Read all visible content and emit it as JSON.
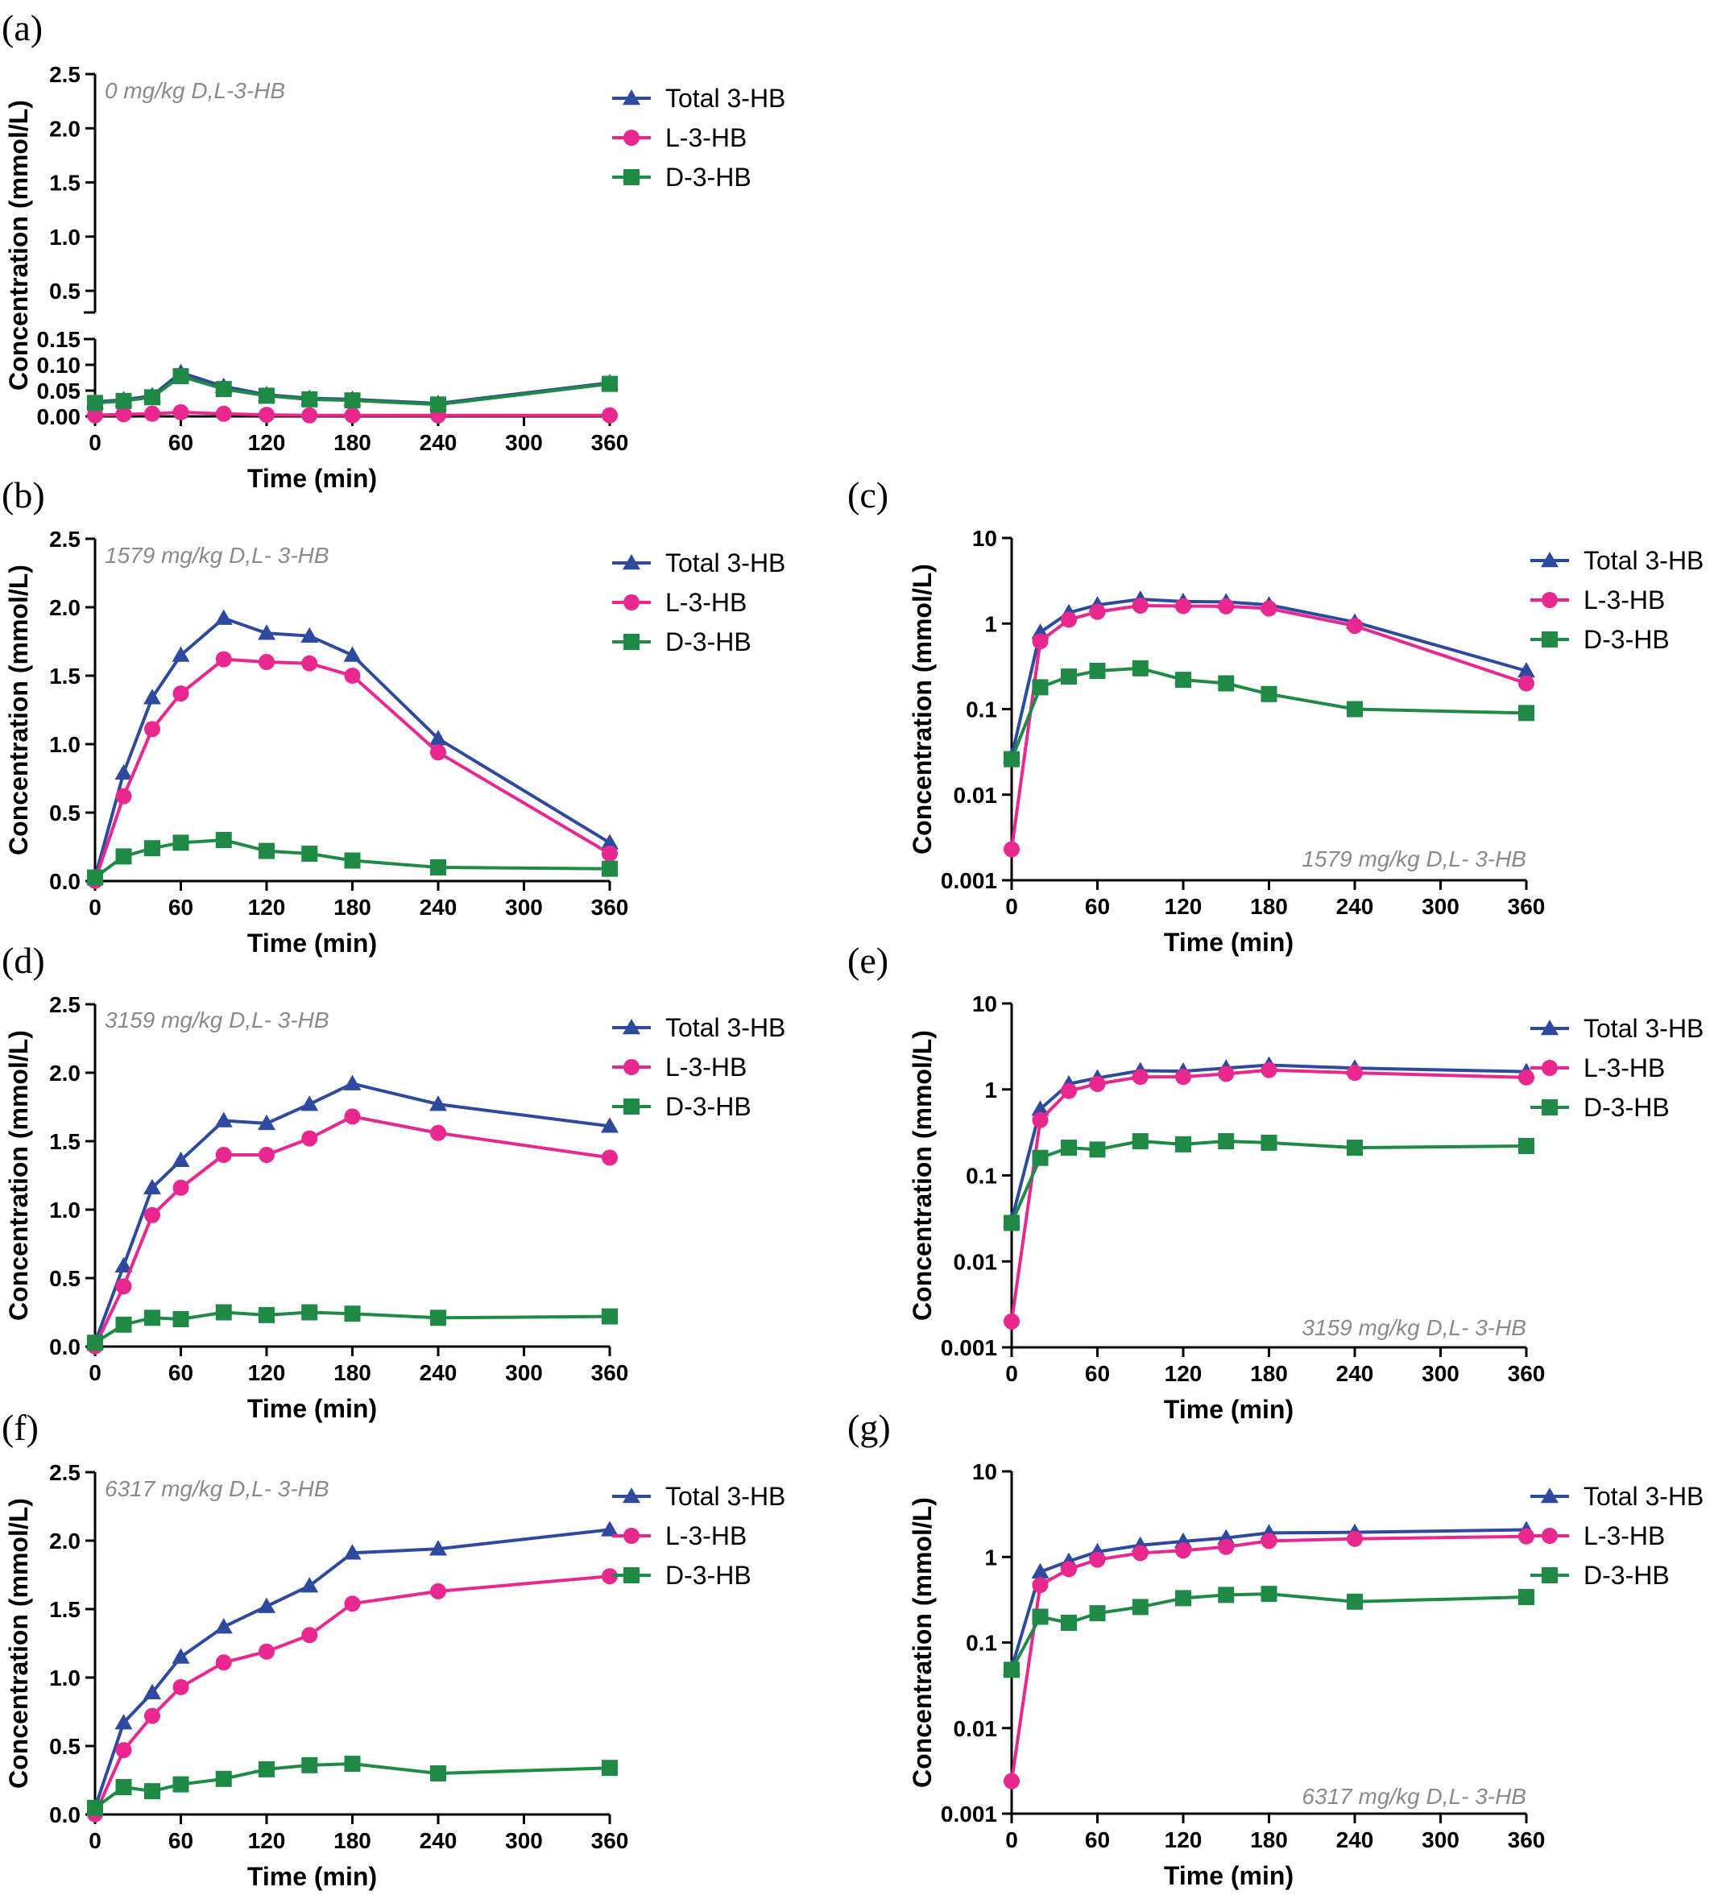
{
  "chart_data": [
    {
      "id": "a",
      "panel_label": "(a)",
      "type": "line",
      "yscale": "broken-linear",
      "annotation": "0 mg/kg D,L-3-HB",
      "xlabel": "Time (min)",
      "ylabel": "Concentration (mmol/L)",
      "xlim": [
        0,
        360
      ],
      "xticks": [
        0,
        60,
        120,
        180,
        240,
        300,
        360
      ],
      "xtick_labels": [
        "0",
        "60",
        "120",
        "180",
        "240",
        "300",
        "360"
      ],
      "lower_ylim": [
        0,
        0.15
      ],
      "lower_yticks": [
        0,
        0.05,
        0.1,
        0.15
      ],
      "lower_ytick_labels": [
        "0.00",
        "0.05",
        "0.10",
        "0.15"
      ],
      "upper_ylim": [
        0.3,
        2.5
      ],
      "upper_yticks": [
        0.5,
        1.0,
        1.5,
        2.0,
        2.5
      ],
      "upper_ytick_labels": [
        "0.5",
        "1.0",
        "1.5",
        "2.0",
        "2.5"
      ],
      "legend_position": "top-right",
      "x": [
        0,
        20,
        40,
        60,
        90,
        120,
        150,
        180,
        240,
        360
      ],
      "series": [
        {
          "name": "Total 3-HB",
          "values": [
            0.028,
            0.032,
            0.04,
            0.085,
            0.058,
            0.042,
            0.035,
            0.033,
            0.025,
            0.065
          ]
        },
        {
          "name": "L-3-HB",
          "values": [
            0.002,
            0.004,
            0.005,
            0.008,
            0.005,
            0.003,
            0.002,
            0.002,
            0.002,
            0.002
          ]
        },
        {
          "name": "D-3-HB",
          "values": [
            0.026,
            0.03,
            0.037,
            0.078,
            0.053,
            0.04,
            0.033,
            0.031,
            0.023,
            0.063
          ]
        }
      ]
    },
    {
      "id": "b",
      "panel_label": "(b)",
      "type": "line",
      "yscale": "linear",
      "annotation": "1579 mg/kg D,L- 3-HB",
      "xlabel": "Time (min)",
      "ylabel": "Concentration (mmol/L)",
      "xlim": [
        0,
        360
      ],
      "xticks": [
        0,
        60,
        120,
        180,
        240,
        300,
        360
      ],
      "xtick_labels": [
        "0",
        "60",
        "120",
        "180",
        "240",
        "300",
        "360"
      ],
      "ylim": [
        0,
        2.5
      ],
      "yticks": [
        0,
        0.5,
        1.0,
        1.5,
        2.0,
        2.5
      ],
      "ytick_labels": [
        "0.0",
        "0.5",
        "1.0",
        "1.5",
        "2.0",
        "2.5"
      ],
      "legend_position": "top-right",
      "x": [
        0,
        20,
        40,
        60,
        90,
        120,
        150,
        180,
        240,
        360
      ],
      "series": [
        {
          "name": "Total 3-HB",
          "values": [
            0.028,
            0.79,
            1.34,
            1.65,
            1.92,
            1.81,
            1.79,
            1.65,
            1.04,
            0.28
          ]
        },
        {
          "name": "L-3-HB",
          "values": [
            0.002,
            0.62,
            1.11,
            1.37,
            1.62,
            1.6,
            1.59,
            1.5,
            0.94,
            0.2
          ]
        },
        {
          "name": "D-3-HB",
          "values": [
            0.026,
            0.18,
            0.24,
            0.28,
            0.3,
            0.22,
            0.2,
            0.15,
            0.1,
            0.09
          ]
        }
      ]
    },
    {
      "id": "c",
      "panel_label": "(c)",
      "type": "line",
      "yscale": "log",
      "annotation": "1579 mg/kg D,L- 3-HB",
      "xlabel": "Time (min)",
      "ylabel": "Concentration (mmol/L)",
      "xlim": [
        0,
        360
      ],
      "xticks": [
        0,
        60,
        120,
        180,
        240,
        300,
        360
      ],
      "xtick_labels": [
        "0",
        "60",
        "120",
        "180",
        "240",
        "300",
        "360"
      ],
      "ylim": [
        0.001,
        10
      ],
      "yticks": [
        0.001,
        0.01,
        0.1,
        1,
        10
      ],
      "ytick_labels": [
        "0.001",
        "0.01",
        "0.1",
        "1",
        "10"
      ],
      "legend_position": "top-right",
      "x": [
        0,
        20,
        40,
        60,
        90,
        120,
        150,
        180,
        240,
        360
      ],
      "series": [
        {
          "name": "Total 3-HB",
          "values": [
            0.028,
            0.79,
            1.34,
            1.65,
            1.92,
            1.81,
            1.79,
            1.65,
            1.04,
            0.28
          ]
        },
        {
          "name": "L-3-HB",
          "values": [
            0.0023,
            0.62,
            1.11,
            1.37,
            1.62,
            1.6,
            1.59,
            1.5,
            0.94,
            0.2
          ]
        },
        {
          "name": "D-3-HB",
          "values": [
            0.026,
            0.18,
            0.24,
            0.28,
            0.3,
            0.22,
            0.2,
            0.15,
            0.1,
            0.09
          ]
        }
      ]
    },
    {
      "id": "d",
      "panel_label": "(d)",
      "type": "line",
      "yscale": "linear",
      "annotation": "3159 mg/kg D,L- 3-HB",
      "xlabel": "Time (min)",
      "ylabel": "Concentration (mmol/L)",
      "xlim": [
        0,
        360
      ],
      "xticks": [
        0,
        60,
        120,
        180,
        240,
        300,
        360
      ],
      "xtick_labels": [
        "0",
        "60",
        "120",
        "180",
        "240",
        "300",
        "360"
      ],
      "ylim": [
        0,
        2.5
      ],
      "yticks": [
        0,
        0.5,
        1.0,
        1.5,
        2.0,
        2.5
      ],
      "ytick_labels": [
        "0.0",
        "0.5",
        "1.0",
        "1.5",
        "2.0",
        "2.5"
      ],
      "legend_position": "top-right",
      "x": [
        0,
        20,
        40,
        60,
        90,
        120,
        150,
        180,
        240,
        360
      ],
      "series": [
        {
          "name": "Total 3-HB",
          "values": [
            0.03,
            0.59,
            1.16,
            1.36,
            1.65,
            1.63,
            1.77,
            1.92,
            1.77,
            1.61
          ]
        },
        {
          "name": "L-3-HB",
          "values": [
            0.002,
            0.44,
            0.96,
            1.16,
            1.4,
            1.4,
            1.52,
            1.68,
            1.56,
            1.38
          ]
        },
        {
          "name": "D-3-HB",
          "values": [
            0.028,
            0.16,
            0.21,
            0.2,
            0.25,
            0.23,
            0.25,
            0.24,
            0.21,
            0.22
          ]
        }
      ]
    },
    {
      "id": "e",
      "panel_label": "(e)",
      "type": "line",
      "yscale": "log",
      "annotation": "3159 mg/kg D,L- 3-HB",
      "xlabel": "Time (min)",
      "ylabel": "Concentration (mmol/L)",
      "xlim": [
        0,
        360
      ],
      "xticks": [
        0,
        60,
        120,
        180,
        240,
        300,
        360
      ],
      "xtick_labels": [
        "0",
        "60",
        "120",
        "180",
        "240",
        "300",
        "360"
      ],
      "ylim": [
        0.001,
        10
      ],
      "yticks": [
        0.001,
        0.01,
        0.1,
        1,
        10
      ],
      "ytick_labels": [
        "0.001",
        "0.01",
        "0.1",
        "1",
        "10"
      ],
      "legend_position": "top-right",
      "x": [
        0,
        20,
        40,
        60,
        90,
        120,
        150,
        180,
        240,
        360
      ],
      "series": [
        {
          "name": "Total 3-HB",
          "values": [
            0.03,
            0.59,
            1.16,
            1.36,
            1.65,
            1.63,
            1.77,
            1.92,
            1.77,
            1.61
          ]
        },
        {
          "name": "L-3-HB",
          "values": [
            0.002,
            0.44,
            0.96,
            1.16,
            1.4,
            1.4,
            1.52,
            1.68,
            1.56,
            1.38
          ]
        },
        {
          "name": "D-3-HB",
          "values": [
            0.028,
            0.16,
            0.21,
            0.2,
            0.25,
            0.23,
            0.25,
            0.24,
            0.21,
            0.22
          ]
        }
      ]
    },
    {
      "id": "f",
      "panel_label": "(f)",
      "type": "line",
      "yscale": "linear",
      "annotation": "6317 mg/kg D,L- 3-HB",
      "xlabel": "Time (min)",
      "ylabel": "Concentration (mmol/L)",
      "xlim": [
        0,
        360
      ],
      "xticks": [
        0,
        60,
        120,
        180,
        240,
        300,
        360
      ],
      "xtick_labels": [
        "0",
        "60",
        "120",
        "180",
        "240",
        "300",
        "360"
      ],
      "ylim": [
        0,
        2.5
      ],
      "yticks": [
        0,
        0.5,
        1.0,
        1.5,
        2.0,
        2.5
      ],
      "ytick_labels": [
        "0.0",
        "0.5",
        "1.0",
        "1.5",
        "2.0",
        "2.5"
      ],
      "legend_position": "top-right",
      "x": [
        0,
        20,
        40,
        60,
        90,
        120,
        150,
        180,
        240,
        360
      ],
      "series": [
        {
          "name": "Total 3-HB",
          "values": [
            0.05,
            0.67,
            0.89,
            1.15,
            1.37,
            1.52,
            1.67,
            1.91,
            1.94,
            2.08
          ]
        },
        {
          "name": "L-3-HB",
          "values": [
            0.002,
            0.47,
            0.72,
            0.93,
            1.11,
            1.19,
            1.31,
            1.54,
            1.63,
            1.74
          ]
        },
        {
          "name": "D-3-HB",
          "values": [
            0.048,
            0.2,
            0.17,
            0.22,
            0.26,
            0.33,
            0.36,
            0.37,
            0.3,
            0.34
          ]
        }
      ]
    },
    {
      "id": "g",
      "panel_label": "(g)",
      "type": "line",
      "yscale": "log",
      "annotation": "6317 mg/kg D,L- 3-HB",
      "xlabel": "Time (min)",
      "ylabel": "Concentration (mmol/L)",
      "xlim": [
        0,
        360
      ],
      "xticks": [
        0,
        60,
        120,
        180,
        240,
        300,
        360
      ],
      "xtick_labels": [
        "0",
        "60",
        "120",
        "180",
        "240",
        "300",
        "360"
      ],
      "ylim": [
        0.001,
        10
      ],
      "yticks": [
        0.001,
        0.01,
        0.1,
        1,
        10
      ],
      "ytick_labels": [
        "0.001",
        "0.01",
        "0.1",
        "1",
        "10"
      ],
      "legend_position": "top-right",
      "x": [
        0,
        20,
        40,
        60,
        90,
        120,
        150,
        180,
        240,
        360
      ],
      "series": [
        {
          "name": "Total 3-HB",
          "values": [
            0.05,
            0.67,
            0.89,
            1.15,
            1.37,
            1.52,
            1.67,
            1.91,
            1.94,
            2.08
          ]
        },
        {
          "name": "L-3-HB",
          "values": [
            0.0024,
            0.47,
            0.72,
            0.93,
            1.11,
            1.19,
            1.31,
            1.54,
            1.63,
            1.74
          ]
        },
        {
          "name": "D-3-HB",
          "values": [
            0.048,
            0.2,
            0.17,
            0.22,
            0.26,
            0.33,
            0.36,
            0.37,
            0.3,
            0.34
          ]
        }
      ]
    }
  ],
  "legend": {
    "entries": [
      {
        "name": "Total 3-HB",
        "color": "#2e4a9e",
        "marker": "triangle-icon"
      },
      {
        "name": "L-3-HB",
        "color": "#e8278f",
        "marker": "circle-icon"
      },
      {
        "name": "D-3-HB",
        "color": "#1e8a46",
        "marker": "square-icon"
      }
    ]
  }
}
